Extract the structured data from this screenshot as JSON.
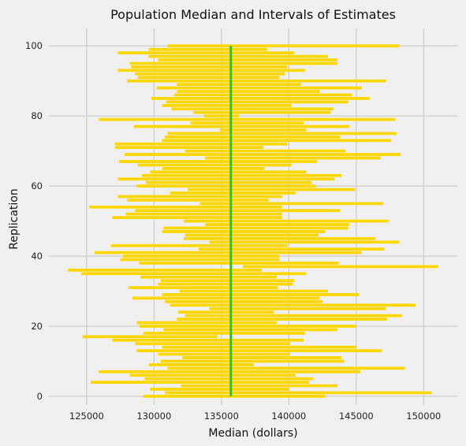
{
  "chart_data": {
    "type": "bar",
    "orientation": "horizontal-intervals",
    "title": "Population Median and Intervals of Estimates",
    "xlabel": "Median (dollars)",
    "ylabel": "Replication",
    "xlim": [
      122200,
      152500
    ],
    "ylim": [
      -2.5,
      105
    ],
    "xticks": [
      125000,
      130000,
      135000,
      140000,
      145000,
      150000
    ],
    "yticks": [
      0,
      20,
      40,
      60,
      80,
      100
    ],
    "grid": true,
    "population_median": 135700,
    "series": [
      {
        "name": "",
        "color": "#ffd700",
        "intervals": [
          [
            129200,
            142700
          ],
          [
            130800,
            150600
          ],
          [
            129700,
            140000
          ],
          [
            132000,
            143600
          ],
          [
            125300,
            141500
          ],
          [
            129300,
            141800
          ],
          [
            128200,
            140500
          ],
          [
            125900,
            145300
          ],
          [
            131000,
            148600
          ],
          [
            129600,
            137400
          ],
          [
            130500,
            144100
          ],
          [
            132100,
            143900
          ],
          [
            130300,
            140100
          ],
          [
            128700,
            146900
          ],
          [
            130600,
            145000
          ],
          [
            128600,
            140100
          ],
          [
            126900,
            141100
          ],
          [
            124700,
            134700
          ],
          [
            129200,
            141200
          ],
          [
            130700,
            143600
          ],
          [
            128900,
            145000
          ],
          [
            128700,
            139100
          ],
          [
            131700,
            147300
          ],
          [
            132300,
            148400
          ],
          [
            131800,
            138900
          ],
          [
            134100,
            147200
          ],
          [
            131200,
            149400
          ],
          [
            130800,
            142500
          ],
          [
            128400,
            142300
          ],
          [
            130600,
            145200
          ],
          [
            131900,
            142900
          ],
          [
            128100,
            139200
          ],
          [
            130300,
            140300
          ],
          [
            130500,
            140400
          ],
          [
            129000,
            139100
          ],
          [
            124600,
            141300
          ],
          [
            123600,
            138000
          ],
          [
            136600,
            151100
          ],
          [
            128900,
            143700
          ],
          [
            127500,
            139300
          ],
          [
            127700,
            139300
          ],
          [
            125600,
            145400
          ],
          [
            133300,
            147100
          ],
          [
            126800,
            139900
          ],
          [
            134100,
            148200
          ],
          [
            132200,
            146400
          ],
          [
            132300,
            142200
          ],
          [
            130600,
            142700
          ],
          [
            130700,
            144400
          ],
          [
            133800,
            144500
          ],
          [
            132200,
            147400
          ],
          [
            126900,
            139500
          ],
          [
            127900,
            139500
          ],
          [
            128600,
            143800
          ],
          [
            125200,
            139500
          ],
          [
            133400,
            147000
          ],
          [
            128000,
            138500
          ],
          [
            127300,
            139500
          ],
          [
            131200,
            140500
          ],
          [
            132500,
            144900
          ],
          [
            128700,
            142000
          ],
          [
            129400,
            141700
          ],
          [
            127300,
            143400
          ],
          [
            129100,
            143900
          ],
          [
            129700,
            141300
          ],
          [
            130600,
            138200
          ],
          [
            128800,
            140200
          ],
          [
            127400,
            142100
          ],
          [
            133800,
            146800
          ],
          [
            127800,
            148300
          ],
          [
            132300,
            144200
          ],
          [
            127100,
            138100
          ],
          [
            127100,
            139900
          ],
          [
            130600,
            147600
          ],
          [
            130800,
            143800
          ],
          [
            131000,
            148000
          ],
          [
            134900,
            141300
          ],
          [
            128500,
            144500
          ],
          [
            132700,
            141100
          ],
          [
            125900,
            147900
          ],
          [
            136300,
            133700
          ],
          [
            132900,
            143100
          ],
          [
            131300,
            143300
          ],
          [
            130600,
            140200
          ],
          [
            130900,
            144400
          ],
          [
            129800,
            146000
          ],
          [
            131500,
            144700
          ],
          [
            131700,
            142300
          ],
          [
            130200,
            145400
          ],
          [
            131700,
            140900
          ],
          [
            128000,
            147200
          ],
          [
            128800,
            139300
          ],
          [
            128600,
            139700
          ],
          [
            127300,
            141200
          ],
          [
            128300,
            139900
          ],
          [
            128200,
            143600
          ],
          [
            130300,
            143600
          ],
          [
            129600,
            142900
          ],
          [
            127300,
            140400
          ],
          [
            129600,
            138400
          ],
          [
            131000,
            148200
          ]
        ]
      }
    ]
  }
}
